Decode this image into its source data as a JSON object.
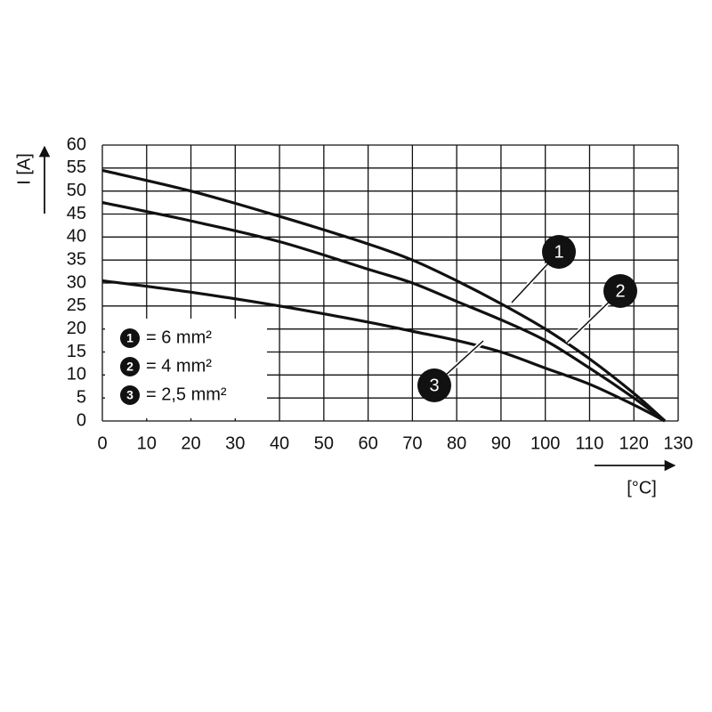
{
  "chart_data": {
    "type": "line",
    "x_label": "[°C]",
    "y_label": "I [A]",
    "x": [
      0,
      20,
      40,
      60,
      70,
      80,
      90,
      100,
      110,
      120,
      127
    ],
    "series": [
      {
        "name": "= 6 mm²",
        "marker": "1",
        "color": "#111111",
        "values": [
          54.5,
          50,
          44.5,
          38.5,
          35,
          30.5,
          25.5,
          20,
          13.5,
          6,
          0
        ]
      },
      {
        "name": "= 4 mm²",
        "marker": "2",
        "color": "#111111",
        "values": [
          47.5,
          43.5,
          39,
          33,
          30,
          26,
          22,
          17.5,
          11.5,
          5,
          0
        ]
      },
      {
        "name": "= 2,5 mm²",
        "marker": "3",
        "color": "#111111",
        "values": [
          30.5,
          28,
          25,
          21.5,
          19.5,
          17.5,
          15,
          11.5,
          8,
          3.5,
          0
        ]
      }
    ],
    "xlim": [
      0,
      130
    ],
    "ylim": [
      0,
      60
    ],
    "xticks": [
      0,
      10,
      20,
      30,
      40,
      50,
      60,
      70,
      80,
      90,
      100,
      110,
      120,
      130
    ],
    "yticks": [
      0,
      5,
      10,
      15,
      20,
      25,
      30,
      35,
      40,
      45,
      50,
      55,
      60
    ],
    "grid": true
  }
}
